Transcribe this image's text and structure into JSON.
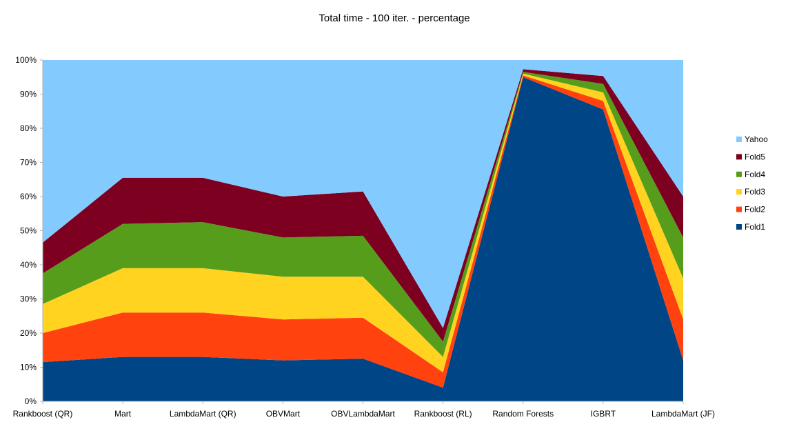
{
  "chart_data": {
    "type": "area",
    "stacked": true,
    "percent": true,
    "title": "Total time - 100 iter. - percentage",
    "xlabel": "",
    "ylabel": "",
    "categories": [
      "Rankboost (QR)",
      "Mart",
      "LambdaMart (QR)",
      "OBVMart",
      "OBVLambdaMart",
      "Rankboost (RL)",
      "Random Forests",
      "IGBRT",
      "LambdaMart (JF)"
    ],
    "y_ticks": [
      "0%",
      "10%",
      "20%",
      "30%",
      "40%",
      "50%",
      "60%",
      "70%",
      "80%",
      "90%",
      "100%"
    ],
    "ylim": [
      0,
      100
    ],
    "grid": false,
    "legend_position": "right",
    "series": [
      {
        "name": "Fold1",
        "color": "#004586",
        "values": [
          11.5,
          13.0,
          13.0,
          12.0,
          12.5,
          4.0,
          95.0,
          85.5,
          12.0
        ]
      },
      {
        "name": "Fold2",
        "color": "#ff420e",
        "values": [
          8.5,
          13.0,
          13.0,
          12.0,
          12.0,
          4.5,
          0.5,
          2.5,
          12.0
        ]
      },
      {
        "name": "Fold3",
        "color": "#ffd320",
        "values": [
          8.5,
          13.0,
          13.0,
          12.5,
          12.0,
          4.5,
          0.5,
          2.5,
          12.0
        ]
      },
      {
        "name": "Fold4",
        "color": "#579d1c",
        "values": [
          9.0,
          13.0,
          13.5,
          11.5,
          12.0,
          4.5,
          0.5,
          2.5,
          12.0
        ]
      },
      {
        "name": "Fold5",
        "color": "#7e0021",
        "values": [
          9.0,
          13.5,
          13.0,
          12.0,
          13.0,
          4.0,
          0.8,
          2.3,
          12.0
        ]
      },
      {
        "name": "Yahoo",
        "color": "#83caff",
        "values": [
          53.5,
          34.5,
          34.5,
          40.0,
          38.5,
          78.5,
          2.7,
          4.7,
          40.0
        ]
      }
    ]
  }
}
